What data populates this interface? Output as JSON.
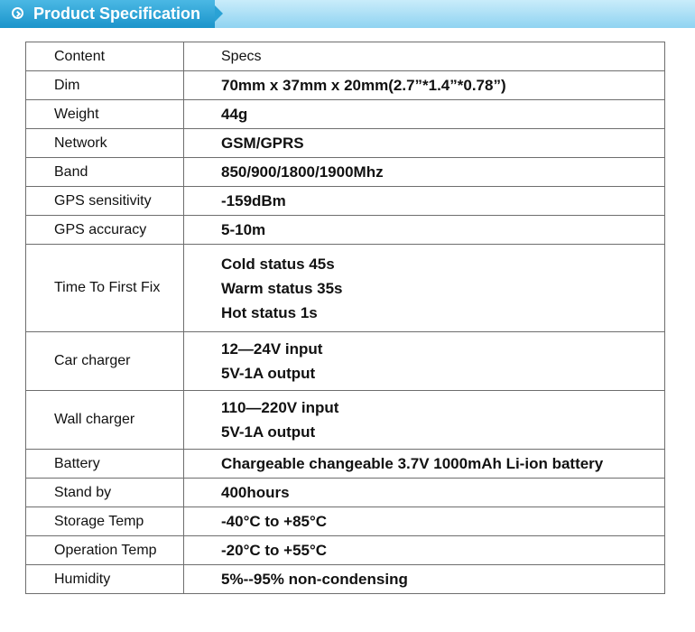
{
  "banner": {
    "title": "Product Specification",
    "icon": "chevron-right-circle-icon"
  },
  "table": {
    "header": {
      "content": "Content",
      "specs": "Specs"
    },
    "rows": [
      {
        "content": "Dim",
        "specs": [
          "70mm x 37mm x 20mm(2.7”*1.4”*0.78”)"
        ]
      },
      {
        "content": "Weight",
        "specs": [
          "44g"
        ]
      },
      {
        "content": "Network",
        "specs": [
          "GSM/GPRS"
        ]
      },
      {
        "content": "Band",
        "specs": [
          "850/900/1800/1900Mhz"
        ]
      },
      {
        "content": "GPS sensitivity",
        "specs": [
          "-159dBm"
        ]
      },
      {
        "content": "GPS accuracy",
        "specs": [
          "5-10m"
        ]
      },
      {
        "content": "Time To First Fix",
        "specs": [
          "Cold status  45s",
          "Warm status  35s",
          "Hot status  1s"
        ]
      },
      {
        "content": "Car charger",
        "specs": [
          "12—24V  input",
          "5V-1A   output"
        ]
      },
      {
        "content": "Wall charger",
        "specs": [
          "110—220V  input",
          "5V-1A  output"
        ]
      },
      {
        "content": "Battery",
        "specs": [
          "Chargeable changeable 3.7V 1000mAh Li-ion battery"
        ]
      },
      {
        "content": "Stand by",
        "specs": [
          "400hours"
        ]
      },
      {
        "content": "Storage Temp",
        "specs": [
          "-40°C to +85°C"
        ]
      },
      {
        "content": "Operation Temp",
        "specs": [
          "-20°C to +55°C"
        ]
      },
      {
        "content": "Humidity",
        "specs": [
          "5%--95% non-condensing"
        ]
      }
    ]
  }
}
